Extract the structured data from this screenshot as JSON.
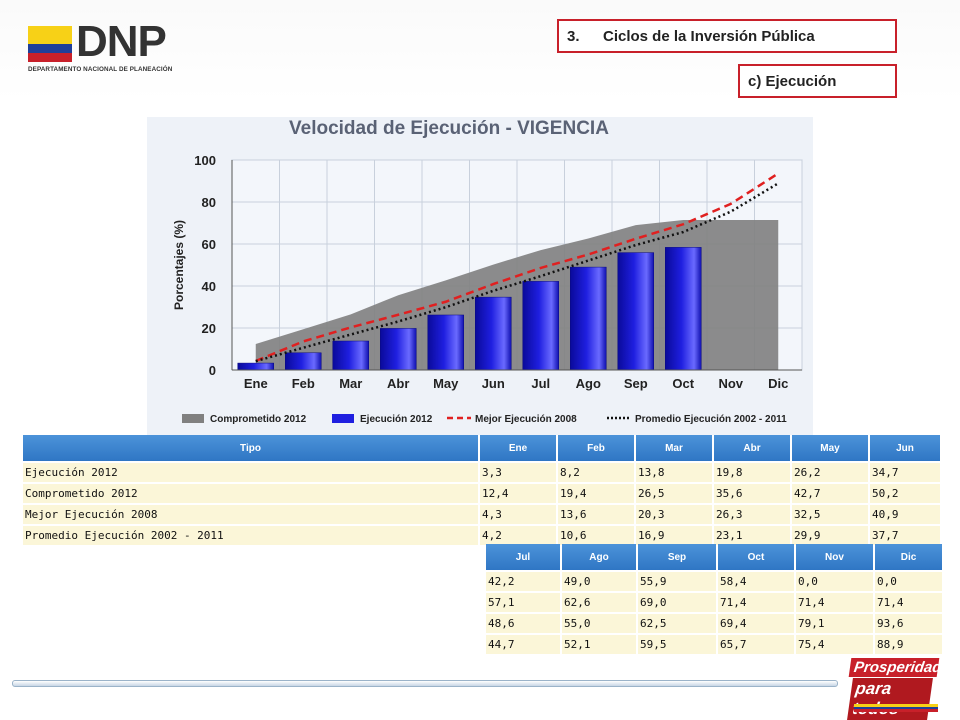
{
  "header": {
    "logo_mark": "DNP",
    "logo_subtitle": "DEPARTAMENTO NACIONAL DE PLANEACIÓN",
    "section_number": "3.",
    "section_title": "Ciclos de la Inversión Pública",
    "subsection": "c) Ejecución"
  },
  "colors": {
    "accent_red": "#c8202a",
    "table_header": "#3b86d1",
    "table_cell": "#fbf6d8",
    "comprometido": "#808080",
    "ejecucion": "#1f1fe0",
    "mejor": "#e02020",
    "promedio": "#111111"
  },
  "chart_data": {
    "type": "bar",
    "title": "Velocidad de Ejecución - VIGENCIA",
    "ylabel": "Porcentajes (%)",
    "xlabel": "",
    "ylim": [
      0,
      100
    ],
    "yticks": [
      "0",
      "20",
      "40",
      "60",
      "80",
      "100"
    ],
    "categories": [
      "Ene",
      "Feb",
      "Mar",
      "Abr",
      "May",
      "Jun",
      "Jul",
      "Ago",
      "Sep",
      "Oct",
      "Nov",
      "Dic"
    ],
    "grid": true,
    "legend_position": "bottom",
    "series": [
      {
        "name": "Comprometido 2012",
        "kind": "area",
        "values": [
          12.4,
          19.4,
          26.5,
          35.6,
          42.7,
          50.2,
          57.1,
          62.6,
          69.0,
          71.4,
          71.4,
          71.4
        ]
      },
      {
        "name": "Ejecución 2012",
        "kind": "bar",
        "values": [
          3.3,
          8.2,
          13.8,
          19.8,
          26.2,
          34.7,
          42.2,
          49.0,
          55.9,
          58.4,
          0.0,
          0.0
        ]
      },
      {
        "name": "Mejor Ejecución 2008",
        "kind": "dashed-line",
        "values": [
          4.3,
          13.6,
          20.3,
          26.3,
          32.5,
          40.9,
          48.6,
          55.0,
          62.5,
          69.4,
          79.1,
          93.6
        ]
      },
      {
        "name": "Promedio Ejecución 2002 - 2011",
        "kind": "dotted-line",
        "values": [
          4.2,
          10.6,
          16.9,
          23.1,
          29.9,
          37.7,
          44.7,
          52.1,
          59.5,
          65.7,
          75.4,
          88.9
        ]
      }
    ]
  },
  "table1": {
    "headers": [
      "Tipo",
      "Ene",
      "Feb",
      "Mar",
      "Abr",
      "May",
      "Jun"
    ],
    "rows": [
      [
        "Ejecución 2012",
        "3,3",
        "8,2",
        "13,8",
        "19,8",
        "26,2",
        "34,7"
      ],
      [
        "Comprometido 2012",
        "12,4",
        "19,4",
        "26,5",
        "35,6",
        "42,7",
        "50,2"
      ],
      [
        "Mejor Ejecución 2008",
        "4,3",
        "13,6",
        "20,3",
        "26,3",
        "32,5",
        "40,9"
      ],
      [
        "Promedio Ejecución 2002 - 2011",
        "4,2",
        "10,6",
        "16,9",
        "23,1",
        "29,9",
        "37,7"
      ]
    ]
  },
  "table2": {
    "headers": [
      "Jul",
      "Ago",
      "Sep",
      "Oct",
      "Nov",
      "Dic"
    ],
    "rows": [
      [
        "42,2",
        "49,0",
        "55,9",
        "58,4",
        "0,0",
        "0,0"
      ],
      [
        "57,1",
        "62,6",
        "69,0",
        "71,4",
        "71,4",
        "71,4"
      ],
      [
        "48,6",
        "55,0",
        "62,5",
        "69,4",
        "79,1",
        "93,6"
      ],
      [
        "44,7",
        "52,1",
        "59,5",
        "65,7",
        "75,4",
        "88,9"
      ]
    ]
  },
  "footer": {
    "brand_line1": "Prosperidad",
    "brand_line2": "para todos"
  }
}
